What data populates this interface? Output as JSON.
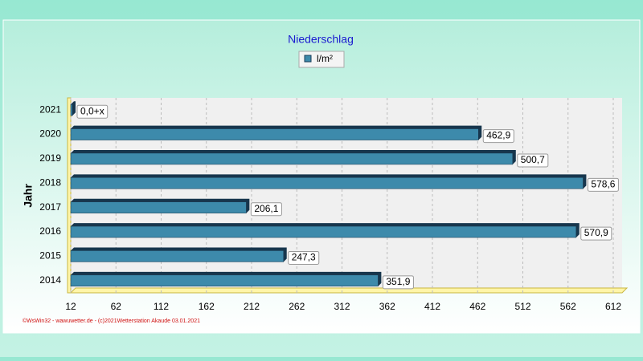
{
  "chart_data": {
    "type": "bar",
    "orientation": "horizontal",
    "title": "Niederschlag",
    "y_label": "Jahr",
    "footer": "©WsWin32 - wawuwetter.de - (c)2021Wetterstation Akaude 03.01.2021",
    "categories": [
      "2021",
      "2020",
      "2019",
      "2018",
      "2017",
      "2016",
      "2015",
      "2014"
    ],
    "series": [
      {
        "name": "l/m²",
        "color": "#3d8aab",
        "values": [
          0,
          462.9,
          500.7,
          578.6,
          206.1,
          570.9,
          247.3,
          351.9
        ],
        "value_labels": [
          "0,0+x",
          "462,9",
          "500,7",
          "578,6",
          "206,1",
          "570,9",
          "247,3",
          "351,9"
        ]
      }
    ],
    "xlim": [
      12,
      612
    ],
    "xticks": [
      12,
      62,
      112,
      162,
      212,
      262,
      312,
      362,
      412,
      462,
      512,
      562,
      612
    ],
    "grid": true
  }
}
